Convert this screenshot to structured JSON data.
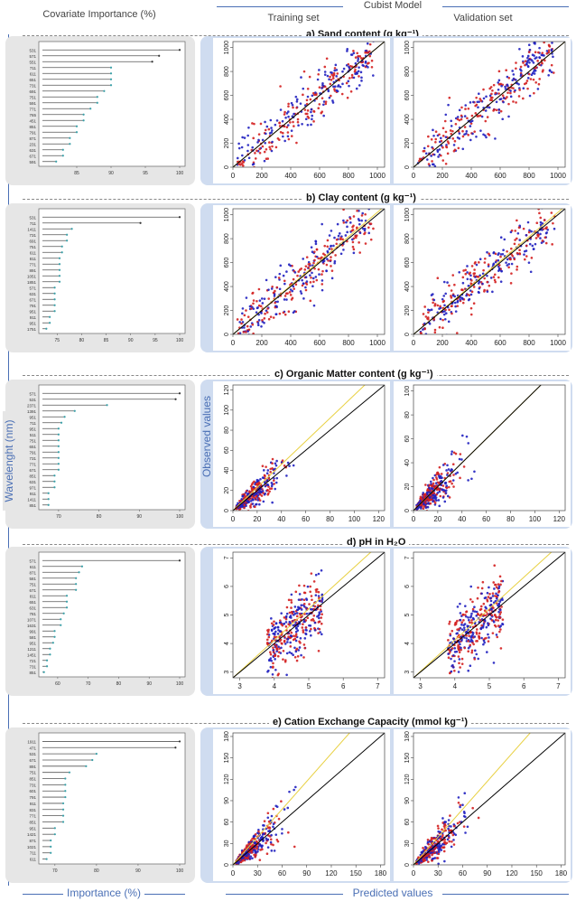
{
  "header": {
    "left_title": "Covariate Importance (%)",
    "model_title": "Cubist Model",
    "training_label": "Training set",
    "validation_label": "Validation set",
    "y_axis_left": "Wavelenght (nm)",
    "y_axis_right": "Observed values",
    "x_axis_left": "Importance (%)",
    "x_axis_right": "Predicted values"
  },
  "sections": [
    {
      "title": "a) Sand content (g kg⁻¹)"
    },
    {
      "title": "b) Clay content (g kg⁻¹)"
    },
    {
      "title": "c) Organic Matter content (g kg⁻¹)"
    },
    {
      "title": "d) pH in H₂O"
    },
    {
      "title": "e) Cation Exchange Capacity (mmol kg⁻¹)"
    }
  ],
  "colors": {
    "training_points_a": "#d42020",
    "training_points_b": "#2020c0",
    "one_to_one": "#000000",
    "fit_line": "#e8d040",
    "panel_blue": "#cfdcf0",
    "panel_grey": "#e6e6e6"
  },
  "chart_data": [
    {
      "type": "bar",
      "subtype": "lollipop",
      "section": "a",
      "xlabel": "Importance (%)",
      "ylabel": "Wavelenght (nm)",
      "xlim": [
        80,
        100
      ],
      "xticks": [
        85,
        90,
        95,
        100
      ],
      "categories": [
        "531",
        "571",
        "551",
        "711",
        "611",
        "651",
        "731",
        "691",
        "751",
        "591",
        "771",
        "765",
        "451",
        "851",
        "791",
        "871",
        "231",
        "631",
        "671",
        "591"
      ],
      "values": [
        100,
        97,
        96,
        90,
        90,
        90,
        90,
        89,
        88,
        88,
        87,
        86,
        86,
        85,
        85,
        84,
        84,
        83,
        83,
        82
      ]
    },
    {
      "type": "bar",
      "subtype": "lollipop",
      "section": "b",
      "xlabel": "Importance (%)",
      "ylabel": "Wavelenght (nm)",
      "xlim": [
        72,
        100
      ],
      "xticks": [
        75,
        80,
        85,
        90,
        95,
        100
      ],
      "categories": [
        "531",
        "711",
        "1411",
        "731",
        "691",
        "751",
        "611",
        "811",
        "771",
        "891",
        "1051",
        "1851",
        "571",
        "631",
        "671",
        "791",
        "951",
        "911",
        "951",
        "1751"
      ],
      "values": [
        100,
        92,
        78,
        77,
        77,
        76,
        76,
        75.5,
        75.5,
        75.5,
        75.5,
        75.5,
        74.5,
        74.5,
        74.5,
        74.5,
        74.5,
        73.5,
        73.5,
        72.8
      ]
    },
    {
      "type": "bar",
      "subtype": "lollipop",
      "section": "c",
      "xlabel": "Importance (%)",
      "ylabel": "Wavelenght (nm)",
      "xlim": [
        66,
        100
      ],
      "xticks": [
        70,
        80,
        90,
        100
      ],
      "categories": [
        "571",
        "531",
        "2371",
        "1391",
        "951",
        "711",
        "951",
        "511",
        "751",
        "651",
        "791",
        "731",
        "771",
        "671",
        "851",
        "631",
        "971",
        "911",
        "1411",
        "851"
      ],
      "values": [
        100,
        99,
        82,
        74,
        71.5,
        70.7,
        70,
        70,
        70,
        70,
        70,
        70,
        70,
        70,
        69,
        69,
        69,
        67.5,
        67.5,
        67.5
      ]
    },
    {
      "type": "bar",
      "subtype": "lollipop",
      "section": "d",
      "xlabel": "Importance (%)",
      "ylabel": "Wavelenght (nm)",
      "xlim": [
        55,
        100
      ],
      "xticks": [
        60,
        70,
        80,
        90,
        100
      ],
      "categories": [
        "571",
        "611",
        "871",
        "581",
        "751",
        "671",
        "811",
        "651",
        "631",
        "781",
        "1071",
        "1631",
        "991",
        "581",
        "951",
        "1211",
        "1451",
        "721",
        "731",
        "851"
      ],
      "values": [
        100,
        68,
        67,
        66,
        66,
        66,
        63,
        63,
        63,
        62,
        61,
        61,
        59,
        59,
        58.5,
        57.5,
        57.5,
        56.5,
        56.5,
        55.5
      ]
    },
    {
      "type": "bar",
      "subtype": "lollipop",
      "section": "e",
      "xlabel": "Importance (%)",
      "ylabel": "Wavelenght (nm)",
      "xlim": [
        67,
        100
      ],
      "xticks": [
        70,
        80,
        90,
        100
      ],
      "categories": [
        "1911",
        "471",
        "531",
        "671",
        "891",
        "751",
        "851",
        "731",
        "601",
        "791",
        "911",
        "831",
        "771",
        "851",
        "951",
        "1421",
        "871",
        "1021",
        "711",
        "611"
      ],
      "values": [
        100,
        99,
        80,
        79,
        77.5,
        73.5,
        72.5,
        72.5,
        72.5,
        72.5,
        72,
        72,
        72,
        72,
        70,
        70,
        69,
        69,
        69,
        68
      ]
    },
    {
      "type": "scatter",
      "section": "a",
      "set": "Training set",
      "xlabel": "Predicted values",
      "ylabel": "Observed values",
      "xlim": [
        0,
        1050
      ],
      "ylim": [
        0,
        1050
      ],
      "xticks": [
        0,
        200,
        400,
        600,
        800,
        1000
      ],
      "yticks": [
        0,
        200,
        400,
        600,
        800,
        1000
      ],
      "fit_slope": 1.0
    },
    {
      "type": "scatter",
      "section": "a",
      "set": "Validation set",
      "xlabel": "Predicted values",
      "ylabel": "Observed values",
      "xlim": [
        0,
        1050
      ],
      "ylim": [
        0,
        1050
      ],
      "xticks": [
        0,
        200,
        400,
        600,
        800,
        1000
      ],
      "yticks": [
        0,
        200,
        400,
        600,
        800,
        1000
      ],
      "fit_slope": 1.0
    },
    {
      "type": "scatter",
      "section": "b",
      "set": "Training set",
      "xlabel": "Predicted values",
      "ylabel": "Observed values",
      "xlim": [
        0,
        1050
      ],
      "ylim": [
        0,
        1050
      ],
      "xticks": [
        0,
        200,
        400,
        600,
        800,
        1000
      ],
      "yticks": [
        0,
        200,
        400,
        600,
        800,
        1000
      ],
      "fit_slope": 1.02
    },
    {
      "type": "scatter",
      "section": "b",
      "set": "Validation set",
      "xlabel": "Predicted values",
      "ylabel": "Observed values",
      "xlim": [
        0,
        1050
      ],
      "ylim": [
        0,
        1050
      ],
      "xticks": [
        0,
        200,
        400,
        600,
        800,
        1000
      ],
      "yticks": [
        0,
        200,
        400,
        600,
        800,
        1000
      ],
      "fit_slope": 1.02
    },
    {
      "type": "scatter",
      "section": "c",
      "set": "Training set",
      "xlabel": "Predicted values",
      "ylabel": "Observed values",
      "xlim": [
        0,
        125
      ],
      "ylim": [
        0,
        125
      ],
      "xticks": [
        0,
        20,
        40,
        60,
        80,
        100,
        120
      ],
      "yticks": [
        0,
        20,
        40,
        60,
        80,
        100,
        120
      ],
      "fit_slope": 1.15
    },
    {
      "type": "scatter",
      "section": "c",
      "set": "Validation set",
      "xlabel": "Predicted values",
      "ylabel": "Observed values",
      "xlim": [
        0,
        125
      ],
      "ylim": [
        0,
        105
      ],
      "xticks": [
        0,
        20,
        40,
        60,
        80,
        100,
        120
      ],
      "yticks": [
        0,
        20,
        40,
        60,
        80,
        100
      ],
      "fit_slope": 1.0
    },
    {
      "type": "scatter",
      "section": "d",
      "set": "Training set",
      "xlabel": "Predicted values",
      "ylabel": "Observed values",
      "xlim": [
        2.8,
        7.2
      ],
      "ylim": [
        2.8,
        7.2
      ],
      "xticks": [
        3,
        4,
        5,
        6,
        7
      ],
      "yticks": [
        3,
        4,
        5,
        6,
        7
      ],
      "fit_slope": 1.1
    },
    {
      "type": "scatter",
      "section": "d",
      "set": "Validation set",
      "xlabel": "Predicted values",
      "ylabel": "Observed values",
      "xlim": [
        2.8,
        7.2
      ],
      "ylim": [
        2.8,
        7.2
      ],
      "xticks": [
        3,
        4,
        5,
        6,
        7
      ],
      "yticks": [
        3,
        4,
        5,
        6,
        7
      ],
      "fit_slope": 1.1
    },
    {
      "type": "scatter",
      "section": "e",
      "set": "Training set",
      "xlabel": "Predicted values",
      "ylabel": "Observed values",
      "xlim": [
        0,
        185
      ],
      "ylim": [
        0,
        185
      ],
      "xticks": [
        0,
        30,
        60,
        90,
        120,
        150,
        180
      ],
      "yticks": [
        0,
        30,
        60,
        90,
        120,
        150,
        180
      ],
      "fit_slope": 1.3
    },
    {
      "type": "scatter",
      "section": "e",
      "set": "Validation set",
      "xlabel": "Predicted values",
      "ylabel": "Observed values",
      "xlim": [
        0,
        185
      ],
      "ylim": [
        0,
        185
      ],
      "xticks": [
        0,
        30,
        60,
        90,
        120,
        150,
        180
      ],
      "yticks": [
        0,
        30,
        60,
        90,
        120,
        150,
        180
      ],
      "fit_slope": 1.3
    }
  ]
}
